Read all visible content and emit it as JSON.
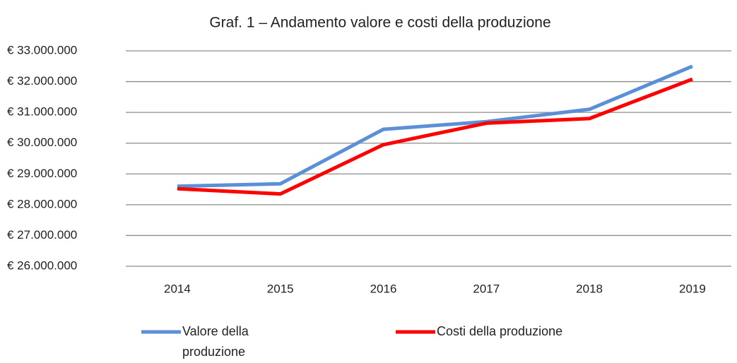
{
  "chart_data": {
    "type": "line",
    "title": "Graf. 1 – Andamento valore e costi della produzione",
    "categories": [
      "2014",
      "2015",
      "2016",
      "2017",
      "2018",
      "2019"
    ],
    "series": [
      {
        "name": "Valore della produzione",
        "color": "#5b8fd6",
        "values": [
          28600000,
          28680000,
          30450000,
          30700000,
          31100000,
          32500000
        ]
      },
      {
        "name": "Costi della produzione",
        "color": "#ff0000",
        "values": [
          28520000,
          28350000,
          29950000,
          30650000,
          30800000,
          32080000
        ]
      }
    ],
    "ylim": [
      26000000,
      33000000
    ],
    "yticks": [
      {
        "value": 26000000,
        "label": "€ 26.000.000"
      },
      {
        "value": 27000000,
        "label": "€ 27.000.000"
      },
      {
        "value": 28000000,
        "label": "€ 28.000.000"
      },
      {
        "value": 29000000,
        "label": "€ 29.000.000"
      },
      {
        "value": 30000000,
        "label": "€ 30.000.000"
      },
      {
        "value": 31000000,
        "label": "€ 31.000.000"
      },
      {
        "value": 32000000,
        "label": "€ 32.000.000"
      },
      {
        "value": 33000000,
        "label": "€ 33.000.000"
      }
    ],
    "grid": true,
    "legend": "bottom"
  }
}
